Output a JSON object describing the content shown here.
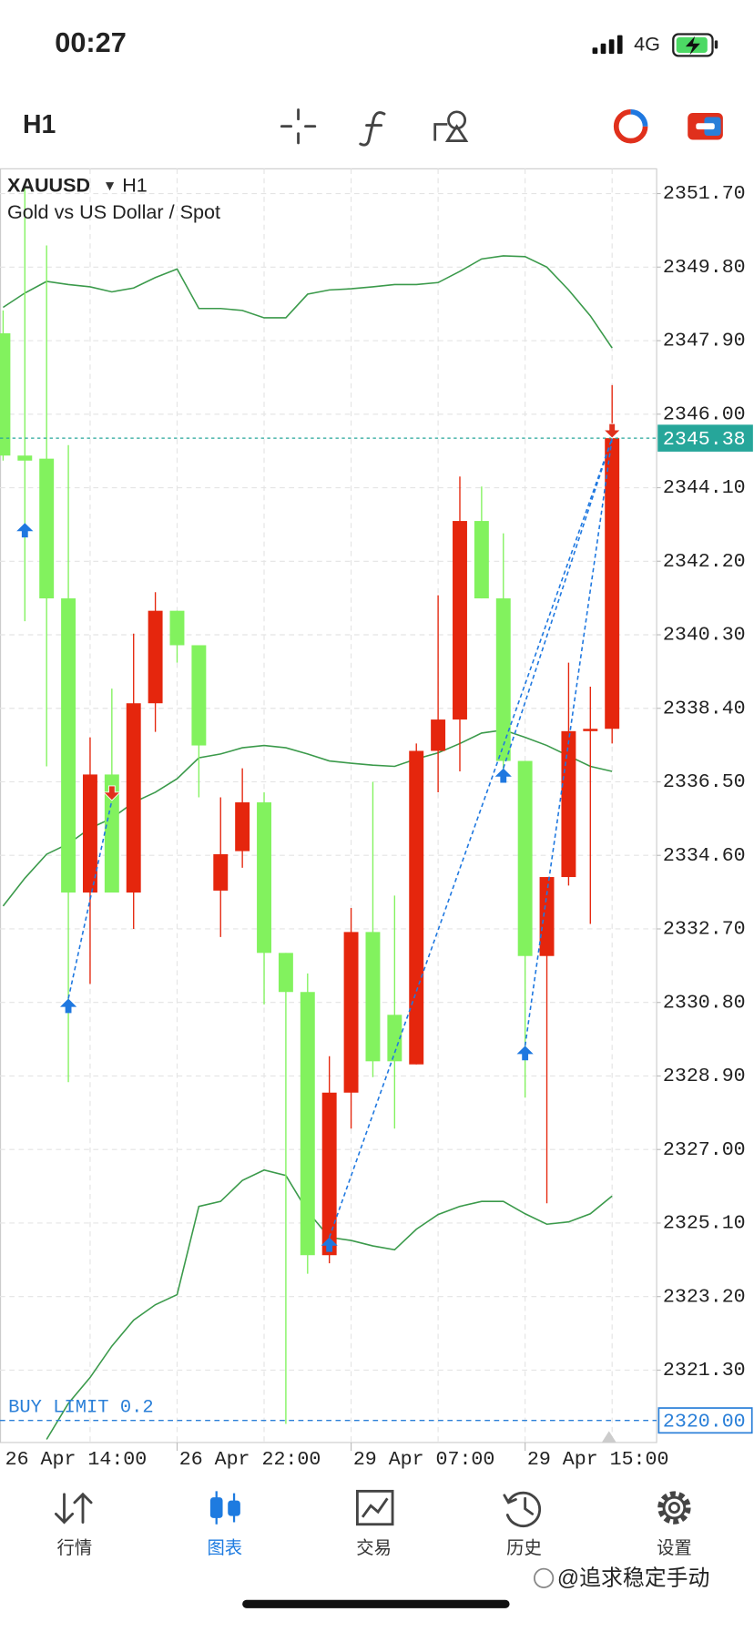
{
  "status_bar": {
    "time": "00:27",
    "network": "4G"
  },
  "toolbar": {
    "timeframe": "H1"
  },
  "chart_data": {
    "type": "candlestick",
    "symbol": "XAUUSD",
    "timeframe": "H1",
    "subtitle": "Gold vs US Dollar / Spot",
    "categories": [
      "26 Apr 14:00",
      null,
      null,
      null,
      null,
      null,
      null,
      null,
      "26 Apr 22:00",
      null,
      null,
      null,
      null,
      null,
      null,
      null,
      "29 Apr 07:00",
      null,
      null,
      null,
      null,
      null,
      null,
      null,
      "29 Apr 15:00",
      null,
      null,
      null,
      null
    ],
    "open": [
      2348.09,
      2344.93,
      2344.85,
      2341.24,
      2333.64,
      2336.69,
      2333.64,
      2338.53,
      2340.92,
      2340.03,
      2333.69,
      2334.71,
      2335.97,
      2332.08,
      2331.07,
      2324.27,
      2328.47,
      2332.62,
      2330.48,
      2329.2,
      2337.3,
      2338.11,
      2343.24,
      2341.24,
      2337.04,
      2332.0,
      2334.04,
      2337.81,
      2337.87
    ],
    "high": [
      2348.68,
      2351.89,
      2350.36,
      2345.2,
      2337.65,
      2338.91,
      2340.33,
      2341.4,
      2340.92,
      2340.03,
      2336.1,
      2336.85,
      2336.23,
      2332.08,
      2331.55,
      2329.41,
      2333.24,
      2336.5,
      2333.56,
      2337.49,
      2341.32,
      2344.39,
      2344.13,
      2342.92,
      2337.04,
      2334.04,
      2339.58,
      2338.96,
      2346.75
    ],
    "low": [
      2344.8,
      2340.65,
      2336.9,
      2328.74,
      2331.28,
      2333.64,
      2332.7,
      2337.79,
      2339.58,
      2336.1,
      2332.49,
      2334.28,
      2330.75,
      2319.91,
      2323.79,
      2324.06,
      2327.54,
      2328.87,
      2327.54,
      2329.2,
      2336.23,
      2336.77,
      2341.24,
      2336.77,
      2328.34,
      2325.61,
      2333.82,
      2332.83,
      2337.49
    ],
    "close": [
      2344.93,
      2344.8,
      2341.24,
      2333.64,
      2336.69,
      2333.64,
      2338.53,
      2340.92,
      2340.03,
      2337.44,
      2334.63,
      2335.97,
      2332.08,
      2331.07,
      2324.27,
      2328.47,
      2332.62,
      2329.28,
      2329.28,
      2337.3,
      2338.11,
      2343.24,
      2341.24,
      2337.04,
      2332.0,
      2334.04,
      2337.81,
      2337.87,
      2345.38
    ],
    "up_color": "#e5260d",
    "down_color": "#82f25e",
    "bands": [
      {
        "color": "#3b9a4b",
        "values": [
          2348.76,
          2349.13,
          2349.43,
          2349.35,
          2349.29,
          2349.16,
          2349.26,
          2349.53,
          2349.75,
          2348.73,
          2348.73,
          2348.68,
          2348.49,
          2348.49,
          2349.1,
          2349.21,
          2349.24,
          2349.29,
          2349.35,
          2349.35,
          2349.4,
          2349.69,
          2350.01,
          2350.09,
          2350.07,
          2349.8,
          2349.21,
          2348.54,
          2347.71
        ]
      },
      {
        "color": "#3b9a4b",
        "values": [
          2333.29,
          2334.01,
          2334.63,
          2334.9,
          2335.3,
          2335.56,
          2335.97,
          2336.23,
          2336.58,
          2337.12,
          2337.22,
          2337.38,
          2337.44,
          2337.38,
          2337.22,
          2337.04,
          2336.98,
          2336.93,
          2336.9,
          2337.09,
          2337.25,
          2337.49,
          2337.76,
          2337.84,
          2337.65,
          2337.44,
          2337.17,
          2336.9,
          2336.77
        ]
      },
      {
        "color": "#3b9a4b",
        "values": [
          null,
          null,
          2319.51,
          2320.44,
          2321.11,
          2321.92,
          2322.59,
          2322.99,
          2323.25,
          2325.53,
          2325.66,
          2326.2,
          2326.47,
          2326.33,
          2325.4,
          2324.73,
          2324.65,
          2324.51,
          2324.41,
          2324.94,
          2325.32,
          2325.53,
          2325.66,
          2325.66,
          2325.34,
          2325.07,
          2325.13,
          2325.34,
          2325.8
        ]
      }
    ],
    "ylim": [
      2319.43,
      2352.34
    ],
    "yticks": [
      {
        "value": 2351.7,
        "label": "2351.70"
      },
      {
        "value": 2349.8,
        "label": "2349.80"
      },
      {
        "value": 2347.9,
        "label": "2347.90"
      },
      {
        "value": 2346,
        "label": "2346.00"
      },
      {
        "value": 2344.1,
        "label": "2344.10"
      },
      {
        "value": 2342.2,
        "label": "2342.20"
      },
      {
        "value": 2340.3,
        "label": "2340.30"
      },
      {
        "value": 2338.4,
        "label": "2338.40"
      },
      {
        "value": 2336.5,
        "label": "2336.50"
      },
      {
        "value": 2334.6,
        "label": "2334.60"
      },
      {
        "value": 2332.7,
        "label": "2332.70"
      },
      {
        "value": 2330.8,
        "label": "2330.80"
      },
      {
        "value": 2328.9,
        "label": "2328.90"
      },
      {
        "value": 2327,
        "label": "2327.00"
      },
      {
        "value": 2325.1,
        "label": "2325.10"
      },
      {
        "value": 2323.2,
        "label": "2323.20"
      },
      {
        "value": 2321.3,
        "label": "2321.30"
      }
    ],
    "grid": true,
    "current_price": {
      "value": 2345.38,
      "color": "#26a69a"
    },
    "order": {
      "label": "BUY LIMIT 0.2",
      "value": 2320,
      "price_label": "2320.00",
      "color": "#2a7fd8"
    },
    "deals": [
      {
        "index": 1,
        "price": 2343.19,
        "direction": "buy"
      },
      {
        "index": 3,
        "price": 2330.9,
        "direction": "buy"
      },
      {
        "index": 5,
        "price": 2336.02,
        "direction": "sell"
      },
      {
        "index": 15,
        "price": 2324.73,
        "direction": "buy"
      },
      {
        "index": 23,
        "price": 2336.85,
        "direction": "buy"
      },
      {
        "index": 24,
        "price": 2329.68,
        "direction": "buy"
      },
      {
        "index": 28,
        "price": 2345.38,
        "direction": "sell"
      }
    ],
    "buy_color": "#1f78e0",
    "sell_color": "#e0301c",
    "deal_lines": [
      {
        "x": [
          3,
          5
        ],
        "y": [
          2330.9,
          2336.02
        ]
      },
      {
        "x": [
          15,
          28
        ],
        "y": [
          2324.73,
          2345.38
        ]
      },
      {
        "x": [
          23,
          28
        ],
        "y": [
          2336.85,
          2345.38
        ]
      },
      {
        "x": [
          24,
          28
        ],
        "y": [
          2329.68,
          2345.38
        ]
      }
    ]
  },
  "nav": {
    "items": [
      "行情",
      "图表",
      "交易",
      "历史",
      "设置"
    ],
    "active": 1
  },
  "watermark": "@追求稳定手动"
}
